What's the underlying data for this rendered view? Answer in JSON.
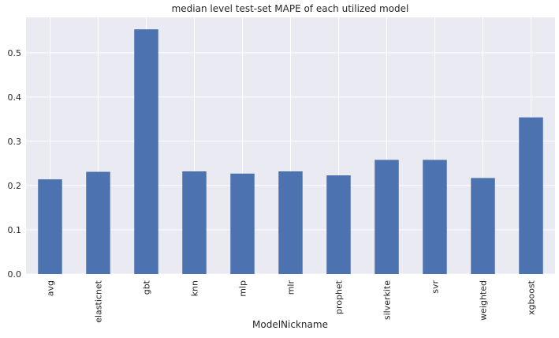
{
  "chart_data": {
    "type": "bar",
    "title": "median level test-set MAPE of each utilized model",
    "xlabel": "ModelNickname",
    "ylabel": "",
    "categories": [
      "avg",
      "elasticnet",
      "gbt",
      "knn",
      "mlp",
      "mlr",
      "prophet",
      "silverkite",
      "svr",
      "weighted",
      "xgboost"
    ],
    "values": [
      0.214,
      0.231,
      0.553,
      0.232,
      0.227,
      0.232,
      0.223,
      0.258,
      0.258,
      0.217,
      0.354
    ],
    "yticks": [
      "0.0",
      "0.1",
      "0.2",
      "0.3",
      "0.4",
      "0.5"
    ],
    "ylim": [
      0,
      0.58
    ],
    "grid": true,
    "legend": "none",
    "colors": {
      "bar": "#4c72b0",
      "plot_background": "#eaeaf2",
      "grid": "#ffffff"
    }
  }
}
